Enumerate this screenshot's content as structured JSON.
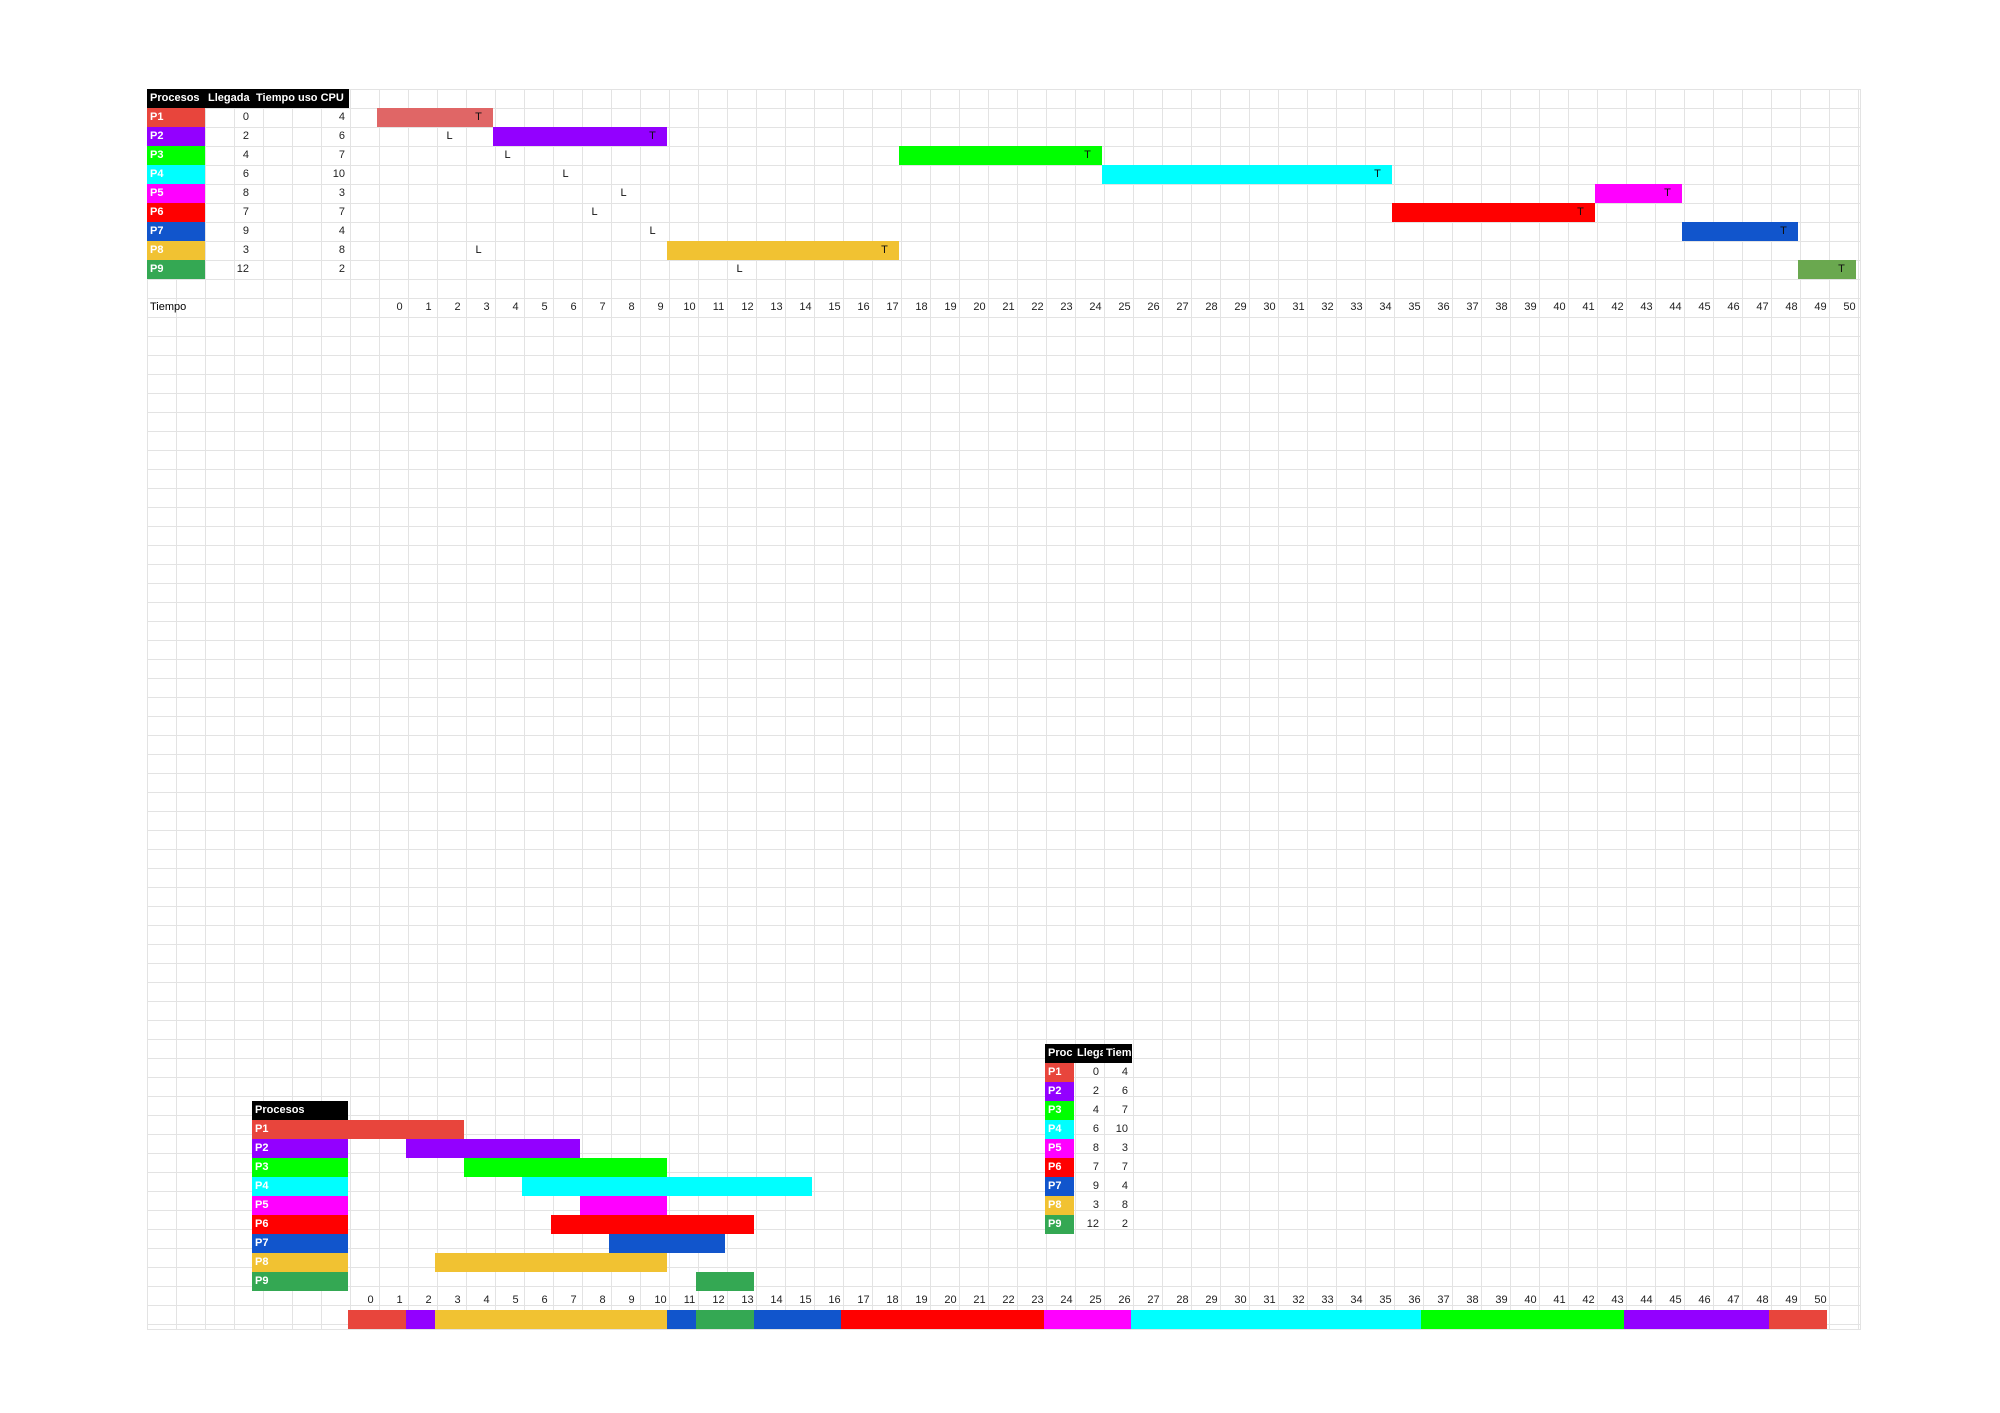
{
  "colors": {
    "P1": "#e8453c",
    "P2": "#9300ff",
    "P3": "#00ff00",
    "P4": "#00ffff",
    "P5": "#ff00ff",
    "P6": "#ff0000",
    "P7": "#1155cc",
    "P8": "#f1c232",
    "P9": "#34a853"
  },
  "top": {
    "headers": [
      "Procesos",
      "Llegada",
      "Tiempo uso CPU"
    ],
    "processes": [
      {
        "name": "P1",
        "arrival": "0",
        "burst": "4"
      },
      {
        "name": "P2",
        "arrival": "2",
        "burst": "6"
      },
      {
        "name": "P3",
        "arrival": "4",
        "burst": "7"
      },
      {
        "name": "P4",
        "arrival": "6",
        "burst": "10"
      },
      {
        "name": "P5",
        "arrival": "8",
        "burst": "3"
      },
      {
        "name": "P6",
        "arrival": "7",
        "burst": "7"
      },
      {
        "name": "P7",
        "arrival": "9",
        "burst": "4"
      },
      {
        "name": "P8",
        "arrival": "3",
        "burst": "8"
      },
      {
        "name": "P9",
        "arrival": "12",
        "burst": "2"
      }
    ],
    "time_label": "Tiempo",
    "ticks": [
      "0",
      "1",
      "2",
      "3",
      "4",
      "5",
      "6",
      "7",
      "8",
      "9",
      "10",
      "11",
      "12",
      "13",
      "14",
      "15",
      "16",
      "17",
      "18",
      "19",
      "20",
      "21",
      "22",
      "23",
      "24",
      "25",
      "26",
      "27",
      "28",
      "29",
      "30",
      "31",
      "32",
      "33",
      "34",
      "35",
      "36",
      "37",
      "38",
      "39",
      "40",
      "41",
      "42",
      "43",
      "44",
      "45",
      "46",
      "47",
      "48",
      "49",
      "50"
    ],
    "gantt": [
      {
        "row": 0,
        "start": 0,
        "end": 4,
        "color": "#e06666"
      },
      {
        "row": 1,
        "start": 4,
        "end": 10,
        "color": "#9300ff"
      },
      {
        "row": 2,
        "start": 18,
        "end": 25,
        "color": "#00ff00"
      },
      {
        "row": 3,
        "start": 25,
        "end": 35,
        "color": "#00ffff"
      },
      {
        "row": 4,
        "start": 42,
        "end": 45,
        "color": "#ff00ff"
      },
      {
        "row": 5,
        "start": 35,
        "end": 42,
        "color": "#ff0000"
      },
      {
        "row": 6,
        "start": 45,
        "end": 49,
        "color": "#1155cc"
      },
      {
        "row": 7,
        "start": 10,
        "end": 18,
        "color": "#f1c232"
      },
      {
        "row": 8,
        "start": 49,
        "end": 51,
        "color": "#6aa84f"
      }
    ],
    "marks": [
      {
        "row": 0,
        "col": 3,
        "text": "T"
      },
      {
        "row": 1,
        "col": 2,
        "text": "L"
      },
      {
        "row": 1,
        "col": 9,
        "text": "T"
      },
      {
        "row": 2,
        "col": 4,
        "text": "L"
      },
      {
        "row": 2,
        "col": 24,
        "text": "T"
      },
      {
        "row": 3,
        "col": 6,
        "text": "L"
      },
      {
        "row": 3,
        "col": 34,
        "text": "T"
      },
      {
        "row": 4,
        "col": 8,
        "text": "L"
      },
      {
        "row": 4,
        "col": 44,
        "text": "T"
      },
      {
        "row": 5,
        "col": 7,
        "text": "L"
      },
      {
        "row": 5,
        "col": 41,
        "text": "T"
      },
      {
        "row": 6,
        "col": 9,
        "text": "L"
      },
      {
        "row": 6,
        "col": 48,
        "text": "T"
      },
      {
        "row": 7,
        "col": 3,
        "text": "L"
      },
      {
        "row": 7,
        "col": 17,
        "text": "T"
      },
      {
        "row": 8,
        "col": 12,
        "text": "L"
      },
      {
        "row": 8,
        "col": 50,
        "text": "T"
      }
    ]
  },
  "mini": {
    "headers": [
      "Proc",
      "Llega",
      "Tiem"
    ],
    "processes": [
      {
        "name": "P1",
        "arrival": "0",
        "burst": "4"
      },
      {
        "name": "P2",
        "arrival": "2",
        "burst": "6"
      },
      {
        "name": "P3",
        "arrival": "4",
        "burst": "7"
      },
      {
        "name": "P4",
        "arrival": "6",
        "burst": "10"
      },
      {
        "name": "P5",
        "arrival": "8",
        "burst": "3"
      },
      {
        "name": "P6",
        "arrival": "7",
        "burst": "7"
      },
      {
        "name": "P7",
        "arrival": "9",
        "burst": "4"
      },
      {
        "name": "P8",
        "arrival": "3",
        "burst": "8"
      },
      {
        "name": "P9",
        "arrival": "12",
        "burst": "2"
      }
    ]
  },
  "bottom": {
    "header": "Procesos",
    "processes": [
      "P1",
      "P2",
      "P3",
      "P4",
      "P5",
      "P6",
      "P7",
      "P8",
      "P9"
    ],
    "ticks": [
      "0",
      "1",
      "2",
      "3",
      "4",
      "5",
      "6",
      "7",
      "8",
      "9",
      "10",
      "11",
      "12",
      "13",
      "14",
      "15",
      "16",
      "17",
      "18",
      "19",
      "20",
      "21",
      "22",
      "23",
      "24",
      "25",
      "26",
      "27",
      "28",
      "29",
      "30",
      "31",
      "32",
      "33",
      "34",
      "35",
      "36",
      "37",
      "38",
      "39",
      "40",
      "41",
      "42",
      "43",
      "44",
      "45",
      "46",
      "47",
      "48",
      "49",
      "50"
    ],
    "gantt": [
      {
        "row": 0,
        "start": 0,
        "end": 4
      },
      {
        "row": 1,
        "start": 2,
        "end": 8
      },
      {
        "row": 2,
        "start": 4,
        "end": 11
      },
      {
        "row": 3,
        "start": 6,
        "end": 16
      },
      {
        "row": 4,
        "start": 8,
        "end": 11
      },
      {
        "row": 5,
        "start": 7,
        "end": 14
      },
      {
        "row": 6,
        "start": 9,
        "end": 13
      },
      {
        "row": 7,
        "start": 3,
        "end": 11
      },
      {
        "row": 8,
        "start": 12,
        "end": 14
      }
    ],
    "sequence": [
      {
        "p": "P1",
        "start": 0,
        "end": 2
      },
      {
        "p": "P2",
        "start": 2,
        "end": 3
      },
      {
        "p": "P8",
        "start": 3,
        "end": 11
      },
      {
        "p": "P7",
        "start": 11,
        "end": 12
      },
      {
        "p": "P9",
        "start": 12,
        "end": 14
      },
      {
        "p": "P7",
        "start": 14,
        "end": 17
      },
      {
        "p": "P6",
        "start": 17,
        "end": 24
      },
      {
        "p": "P5",
        "start": 24,
        "end": 27
      },
      {
        "p": "P4",
        "start": 27,
        "end": 37
      },
      {
        "p": "P3",
        "start": 37,
        "end": 44
      },
      {
        "p": "P2",
        "start": 44,
        "end": 49
      },
      {
        "p": "P1",
        "start": 49,
        "end": 51
      }
    ]
  }
}
